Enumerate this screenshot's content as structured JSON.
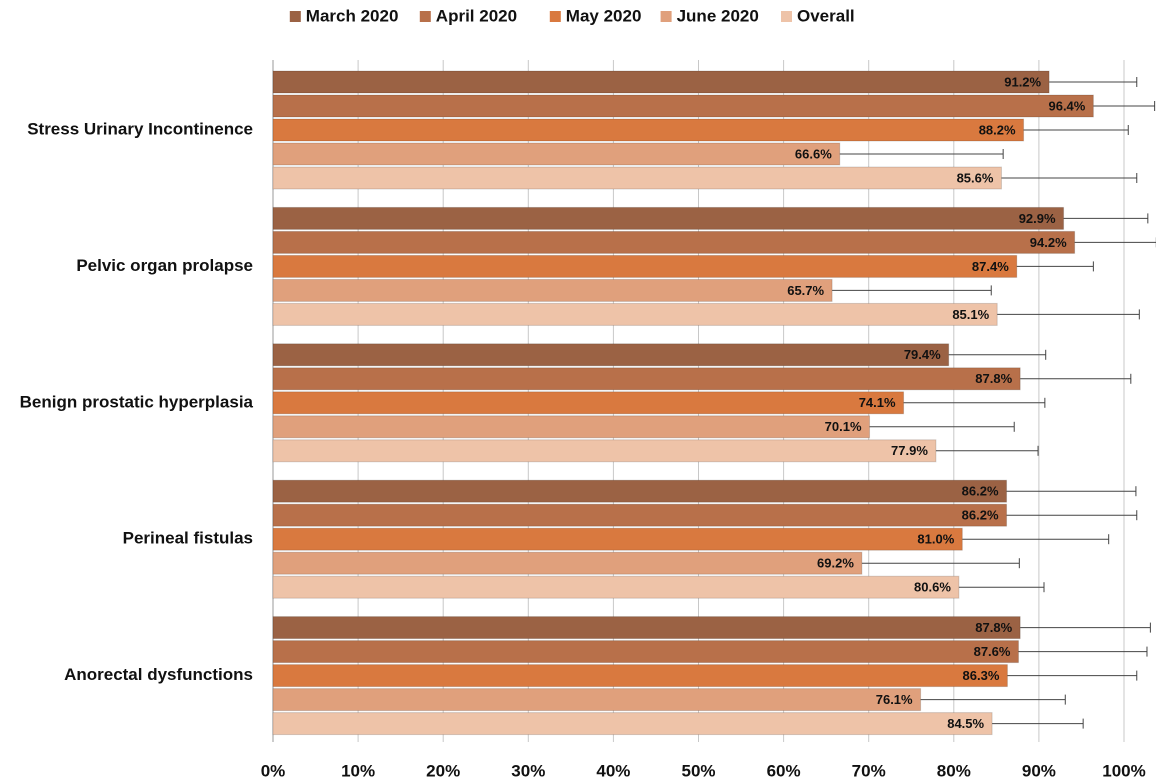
{
  "chart_data": {
    "type": "bar",
    "orientation": "horizontal",
    "categories": [
      "Stress Urinary Incontinence",
      "Pelvic organ prolapse",
      "Benign prostatic hyperplasia",
      "Perineal fistulas",
      "Anorectal dysfunctions"
    ],
    "series": [
      {
        "name": "March 2020",
        "color": "#9b6244",
        "values": [
          91.2,
          92.9,
          79.4,
          86.2,
          87.8
        ],
        "value_labels": [
          "91.2%",
          "92.9%",
          "79.4%",
          "86.2%",
          "87.8%"
        ],
        "errors": [
          10.3,
          9.9,
          11.4,
          15.2,
          15.3
        ]
      },
      {
        "name": "April 2020",
        "color": "#b8704a",
        "values": [
          96.4,
          94.2,
          87.8,
          86.2,
          87.6
        ],
        "value_labels": [
          "96.4%",
          "94.2%",
          "87.8%",
          "86.2%",
          "87.6%"
        ],
        "errors": [
          7.2,
          9.6,
          13.0,
          15.3,
          15.1
        ]
      },
      {
        "name": "May 2020",
        "color": "#d9793f",
        "values": [
          88.2,
          87.4,
          74.1,
          81.0,
          86.3
        ],
        "value_labels": [
          "88.2%",
          "87.4%",
          "74.1%",
          "81.0%",
          "86.3%"
        ],
        "errors": [
          12.3,
          9.0,
          16.6,
          17.2,
          15.2
        ]
      },
      {
        "name": "June 2020",
        "color": "#e0a07c",
        "values": [
          66.6,
          65.7,
          70.1,
          69.2,
          76.1
        ],
        "value_labels": [
          "66.6%",
          "65.7%",
          "70.1%",
          "69.2%",
          "76.1%"
        ],
        "errors": [
          19.2,
          18.7,
          17.0,
          18.5,
          17.0
        ]
      },
      {
        "name": "Overall",
        "color": "#eec3a8",
        "values": [
          85.6,
          85.1,
          77.9,
          80.6,
          84.5
        ],
        "value_labels": [
          "85.6%",
          "85.1%",
          "77.9%",
          "80.6%",
          "84.5%"
        ],
        "errors": [
          15.9,
          16.7,
          12.0,
          10.0,
          10.7
        ]
      }
    ],
    "xlim": [
      0,
      100
    ],
    "xticks": [
      {
        "value": 0,
        "label": "0%"
      },
      {
        "value": 10,
        "label": "10%"
      },
      {
        "value": 20,
        "label": "20%"
      },
      {
        "value": 30,
        "label": "30%"
      },
      {
        "value": 40,
        "label": "40%"
      },
      {
        "value": 50,
        "label": "50%"
      },
      {
        "value": 60,
        "label": "60%"
      },
      {
        "value": 70,
        "label": "70%"
      },
      {
        "value": 80,
        "label": "80%"
      },
      {
        "value": 90,
        "label": "90%"
      },
      {
        "value": 100,
        "label": "100%"
      }
    ],
    "grid": true,
    "legend": "top"
  }
}
